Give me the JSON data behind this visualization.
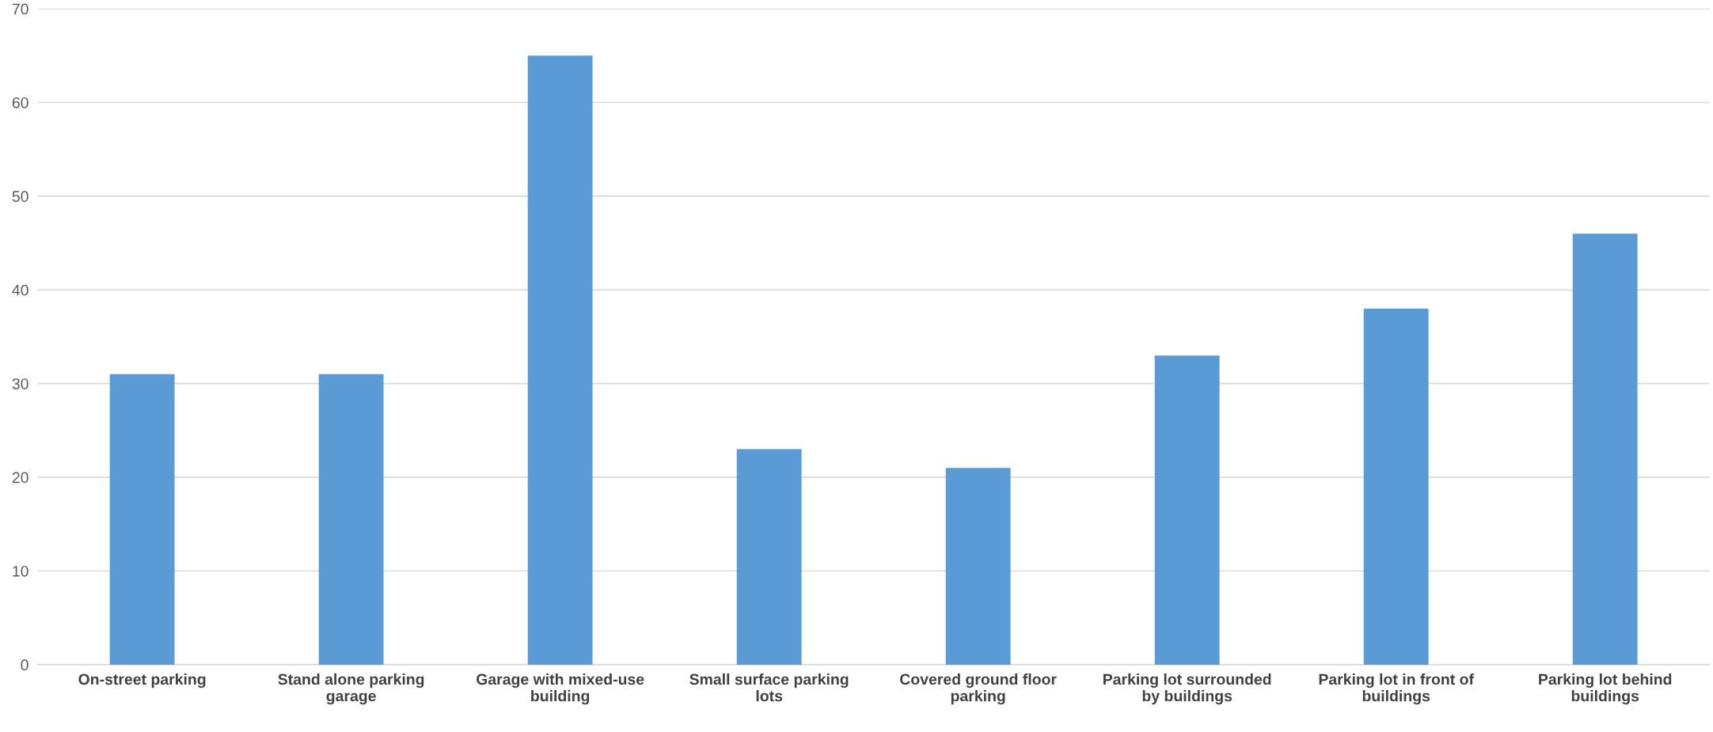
{
  "chart_data": {
    "type": "bar",
    "categories": [
      "On-street parking",
      "Stand alone parking garage",
      "Garage with mixed-use building",
      "Small surface parking lots",
      "Covered ground floor parking",
      "Parking lot surrounded by buildings",
      "Parking lot in front of buildings",
      "Parking lot behind buildings"
    ],
    "values": [
      31,
      31,
      65,
      23,
      21,
      33,
      38,
      46
    ],
    "color": "#5b9bd5",
    "ylim": [
      0,
      70
    ],
    "yticks": [
      0,
      10,
      20,
      30,
      40,
      50,
      60,
      70
    ],
    "grid": "y",
    "legend": false
  }
}
